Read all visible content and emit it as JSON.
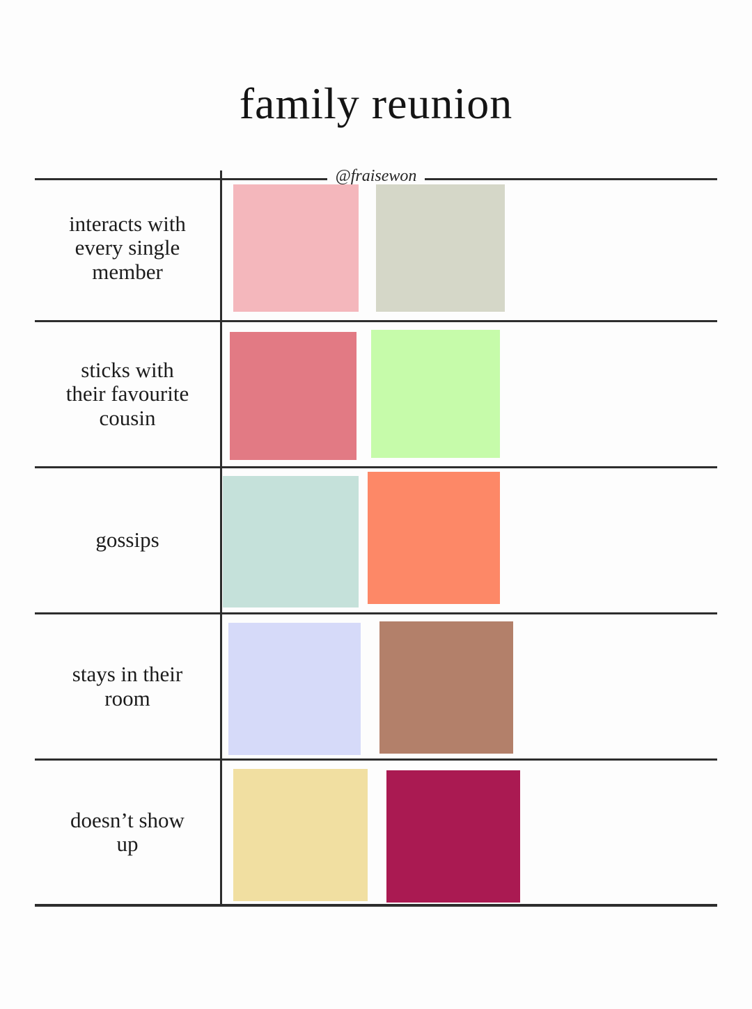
{
  "title": "family reunion",
  "credit": "@fraisewon",
  "rows": [
    {
      "label": "interacts with\nevery single\nmember",
      "swatches": [
        "#f4b7bc",
        "#d5d7c8"
      ]
    },
    {
      "label": "sticks with\ntheir favourite\ncousin",
      "swatches": [
        "#e27a84",
        "#c6fbaa"
      ]
    },
    {
      "label": "gossips",
      "swatches": [
        "#c5e1da",
        "#fd8867"
      ]
    },
    {
      "label": "stays in their\nroom",
      "swatches": [
        "#d6daf9",
        "#b3806a"
      ]
    },
    {
      "label": "doesn’t show\nup",
      "swatches": [
        "#f1dfa1",
        "#aa1a52"
      ]
    }
  ],
  "colors": {
    "line": "#2d2d2d",
    "text": "#1c1c1c",
    "background": "#fdfdfd"
  }
}
